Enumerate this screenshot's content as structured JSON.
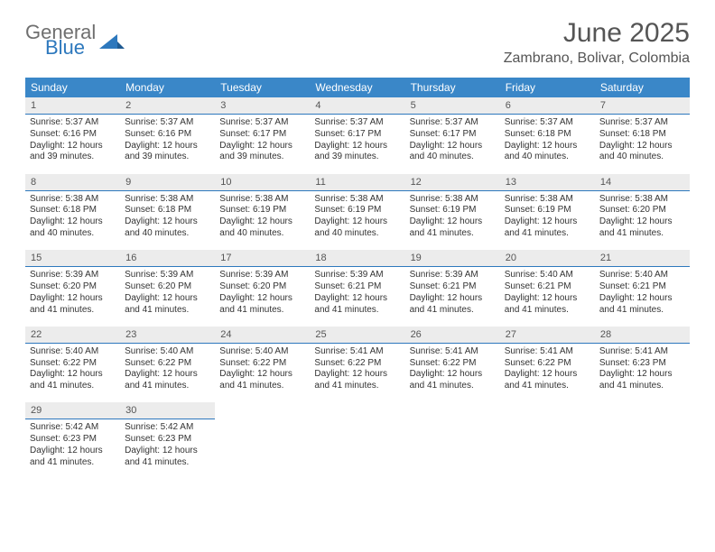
{
  "logo": {
    "word1": "General",
    "word2": "Blue"
  },
  "title": "June 2025",
  "location": "Zambrano, Bolivar, Colombia",
  "colors": {
    "header_bg": "#3a87c8",
    "header_text": "#ffffff",
    "daynum_bg": "#ececec",
    "rule": "#2d78bd",
    "logo_gray": "#6f6f6f",
    "logo_blue": "#2d78bd",
    "title_color": "#555555"
  },
  "day_names": [
    "Sunday",
    "Monday",
    "Tuesday",
    "Wednesday",
    "Thursday",
    "Friday",
    "Saturday"
  ],
  "weeks": [
    [
      {
        "n": 1,
        "sr": "5:37 AM",
        "ss": "6:16 PM",
        "dl": "12 hours and 39 minutes."
      },
      {
        "n": 2,
        "sr": "5:37 AM",
        "ss": "6:16 PM",
        "dl": "12 hours and 39 minutes."
      },
      {
        "n": 3,
        "sr": "5:37 AM",
        "ss": "6:17 PM",
        "dl": "12 hours and 39 minutes."
      },
      {
        "n": 4,
        "sr": "5:37 AM",
        "ss": "6:17 PM",
        "dl": "12 hours and 39 minutes."
      },
      {
        "n": 5,
        "sr": "5:37 AM",
        "ss": "6:17 PM",
        "dl": "12 hours and 40 minutes."
      },
      {
        "n": 6,
        "sr": "5:37 AM",
        "ss": "6:18 PM",
        "dl": "12 hours and 40 minutes."
      },
      {
        "n": 7,
        "sr": "5:37 AM",
        "ss": "6:18 PM",
        "dl": "12 hours and 40 minutes."
      }
    ],
    [
      {
        "n": 8,
        "sr": "5:38 AM",
        "ss": "6:18 PM",
        "dl": "12 hours and 40 minutes."
      },
      {
        "n": 9,
        "sr": "5:38 AM",
        "ss": "6:18 PM",
        "dl": "12 hours and 40 minutes."
      },
      {
        "n": 10,
        "sr": "5:38 AM",
        "ss": "6:19 PM",
        "dl": "12 hours and 40 minutes."
      },
      {
        "n": 11,
        "sr": "5:38 AM",
        "ss": "6:19 PM",
        "dl": "12 hours and 40 minutes."
      },
      {
        "n": 12,
        "sr": "5:38 AM",
        "ss": "6:19 PM",
        "dl": "12 hours and 41 minutes."
      },
      {
        "n": 13,
        "sr": "5:38 AM",
        "ss": "6:19 PM",
        "dl": "12 hours and 41 minutes."
      },
      {
        "n": 14,
        "sr": "5:38 AM",
        "ss": "6:20 PM",
        "dl": "12 hours and 41 minutes."
      }
    ],
    [
      {
        "n": 15,
        "sr": "5:39 AM",
        "ss": "6:20 PM",
        "dl": "12 hours and 41 minutes."
      },
      {
        "n": 16,
        "sr": "5:39 AM",
        "ss": "6:20 PM",
        "dl": "12 hours and 41 minutes."
      },
      {
        "n": 17,
        "sr": "5:39 AM",
        "ss": "6:20 PM",
        "dl": "12 hours and 41 minutes."
      },
      {
        "n": 18,
        "sr": "5:39 AM",
        "ss": "6:21 PM",
        "dl": "12 hours and 41 minutes."
      },
      {
        "n": 19,
        "sr": "5:39 AM",
        "ss": "6:21 PM",
        "dl": "12 hours and 41 minutes."
      },
      {
        "n": 20,
        "sr": "5:40 AM",
        "ss": "6:21 PM",
        "dl": "12 hours and 41 minutes."
      },
      {
        "n": 21,
        "sr": "5:40 AM",
        "ss": "6:21 PM",
        "dl": "12 hours and 41 minutes."
      }
    ],
    [
      {
        "n": 22,
        "sr": "5:40 AM",
        "ss": "6:22 PM",
        "dl": "12 hours and 41 minutes."
      },
      {
        "n": 23,
        "sr": "5:40 AM",
        "ss": "6:22 PM",
        "dl": "12 hours and 41 minutes."
      },
      {
        "n": 24,
        "sr": "5:40 AM",
        "ss": "6:22 PM",
        "dl": "12 hours and 41 minutes."
      },
      {
        "n": 25,
        "sr": "5:41 AM",
        "ss": "6:22 PM",
        "dl": "12 hours and 41 minutes."
      },
      {
        "n": 26,
        "sr": "5:41 AM",
        "ss": "6:22 PM",
        "dl": "12 hours and 41 minutes."
      },
      {
        "n": 27,
        "sr": "5:41 AM",
        "ss": "6:22 PM",
        "dl": "12 hours and 41 minutes."
      },
      {
        "n": 28,
        "sr": "5:41 AM",
        "ss": "6:23 PM",
        "dl": "12 hours and 41 minutes."
      }
    ],
    [
      {
        "n": 29,
        "sr": "5:42 AM",
        "ss": "6:23 PM",
        "dl": "12 hours and 41 minutes."
      },
      {
        "n": 30,
        "sr": "5:42 AM",
        "ss": "6:23 PM",
        "dl": "12 hours and 41 minutes."
      },
      null,
      null,
      null,
      null,
      null
    ]
  ],
  "labels": {
    "sunrise": "Sunrise: ",
    "sunset": "Sunset: ",
    "daylight": "Daylight: "
  }
}
